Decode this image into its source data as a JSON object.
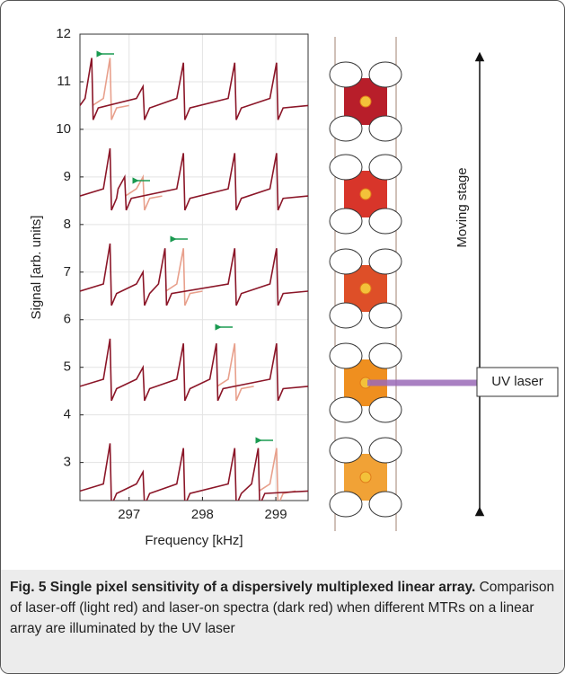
{
  "chart_data": {
    "type": "line",
    "xlabel": "Frequency [kHz]",
    "ylabel": "Signal [arb. units]",
    "xlim": [
      296.33,
      299.44
    ],
    "ylim": [
      2.2,
      12
    ],
    "xticks": [
      297,
      298,
      299
    ],
    "yticks": [
      3,
      4,
      5,
      6,
      7,
      8,
      9,
      10,
      11,
      12
    ],
    "grid": true,
    "series": [
      {
        "color": "#e8a08c",
        "x": [
          296.5,
          296.65,
          296.74,
          296.76,
          296.83,
          297.0
        ],
        "values": [
          10.5,
          10.65,
          11.5,
          10.2,
          10.45,
          10.5
        ]
      },
      {
        "color": "#e8a08c",
        "x": [
          296.95,
          297.1,
          297.19,
          297.21,
          297.28,
          297.45
        ],
        "values": [
          8.6,
          8.75,
          9.0,
          8.3,
          8.55,
          8.6
        ]
      },
      {
        "color": "#e8a08c",
        "x": [
          297.5,
          297.65,
          297.74,
          297.76,
          297.83,
          298.0
        ],
        "values": [
          6.6,
          6.75,
          7.5,
          6.3,
          6.55,
          6.6
        ]
      },
      {
        "color": "#e8a08c",
        "x": [
          298.2,
          298.35,
          298.44,
          298.46,
          298.53,
          298.7
        ],
        "values": [
          4.6,
          4.75,
          5.5,
          4.3,
          4.55,
          4.6
        ]
      },
      {
        "color": "#e8a08c",
        "x": [
          298.77,
          298.92,
          299.01,
          299.03,
          299.1,
          299.27
        ],
        "values": [
          2.4,
          2.55,
          3.3,
          2.1,
          2.35,
          2.4
        ]
      },
      {
        "color": "#8b1628",
        "x": [
          296.33,
          296.4,
          296.49,
          296.51,
          296.58,
          297.1,
          297.19,
          297.21,
          297.28,
          297.65,
          297.74,
          297.76,
          297.83,
          298.35,
          298.44,
          298.46,
          298.53,
          298.92,
          299.01,
          299.03,
          299.1,
          299.44
        ],
        "values": [
          10.5,
          10.65,
          11.5,
          10.2,
          10.45,
          10.65,
          10.9,
          10.2,
          10.45,
          10.65,
          11.4,
          10.2,
          10.45,
          10.65,
          11.4,
          10.2,
          10.45,
          10.65,
          11.4,
          10.2,
          10.45,
          10.5
        ]
      },
      {
        "color": "#8b1628",
        "x": [
          296.33,
          296.65,
          296.74,
          296.76,
          296.83,
          296.85,
          296.94,
          296.96,
          297.03,
          297.65,
          297.74,
          297.76,
          297.83,
          298.35,
          298.44,
          298.46,
          298.53,
          298.92,
          299.01,
          299.03,
          299.1,
          299.44
        ],
        "values": [
          8.6,
          8.75,
          9.6,
          8.3,
          8.55,
          8.75,
          9.0,
          8.3,
          8.55,
          8.75,
          9.5,
          8.3,
          8.55,
          8.75,
          9.5,
          8.3,
          8.55,
          8.75,
          9.5,
          8.3,
          8.55,
          8.6
        ]
      },
      {
        "color": "#8b1628",
        "x": [
          296.33,
          296.65,
          296.74,
          296.76,
          296.83,
          297.1,
          297.19,
          297.21,
          297.28,
          297.4,
          297.49,
          297.51,
          297.58,
          298.35,
          298.44,
          298.46,
          298.53,
          298.92,
          299.01,
          299.03,
          299.1,
          299.44
        ],
        "values": [
          6.6,
          6.75,
          7.6,
          6.3,
          6.55,
          6.75,
          7.0,
          6.3,
          6.55,
          6.75,
          7.5,
          6.3,
          6.55,
          6.75,
          7.5,
          6.3,
          6.55,
          6.75,
          7.5,
          6.3,
          6.55,
          6.6
        ]
      },
      {
        "color": "#8b1628",
        "x": [
          296.33,
          296.65,
          296.74,
          296.76,
          296.83,
          297.1,
          297.19,
          297.21,
          297.28,
          297.65,
          297.74,
          297.76,
          297.83,
          298.1,
          298.19,
          298.21,
          298.28,
          298.92,
          299.01,
          299.03,
          299.1,
          299.44
        ],
        "values": [
          4.6,
          4.75,
          5.6,
          4.3,
          4.55,
          4.75,
          5.0,
          4.3,
          4.55,
          4.75,
          5.5,
          4.3,
          4.55,
          4.75,
          5.5,
          4.3,
          4.55,
          4.75,
          5.5,
          4.3,
          4.55,
          4.6
        ]
      },
      {
        "color": "#8b1628",
        "x": [
          296.33,
          296.65,
          296.74,
          296.76,
          296.83,
          297.1,
          297.19,
          297.21,
          297.28,
          297.65,
          297.74,
          297.76,
          297.83,
          298.35,
          298.44,
          298.46,
          298.53,
          298.67,
          298.76,
          298.78,
          298.85,
          299.44
        ],
        "values": [
          2.4,
          2.55,
          3.4,
          2.1,
          2.35,
          2.55,
          2.8,
          2.1,
          2.35,
          2.55,
          3.3,
          2.1,
          2.35,
          2.55,
          3.3,
          2.1,
          2.35,
          2.55,
          3.3,
          2.1,
          2.35,
          2.4
        ]
      }
    ]
  },
  "diagram": {
    "stage_label": "Moving stage",
    "laser_label": "UV laser"
  },
  "caption": {
    "title": "Fig. 5 Single pixel sensitivity of a dispersively multiplexed linear array.",
    "text": "Comparison of laser-off (light red) and laser-on spectra (dark red) when different MTRs on a linear array are illuminated by the UV laser"
  }
}
